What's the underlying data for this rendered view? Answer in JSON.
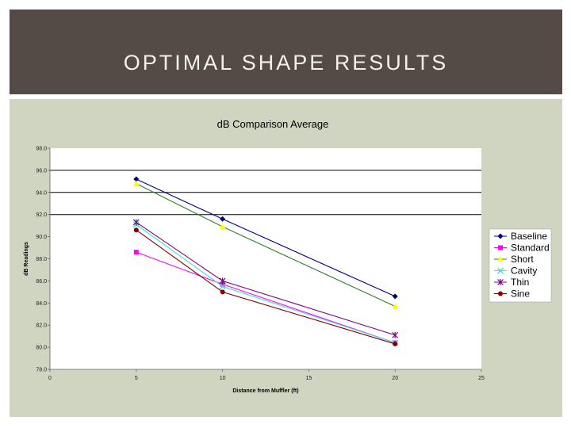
{
  "slide": {
    "title": "OPTIMAL SHAPE RESULTS"
  },
  "colors": {
    "title_band": "#544b47",
    "chart_panel": "#cfd5c0",
    "plot_area": "#ffffff"
  },
  "chart_data": {
    "type": "line",
    "title": "dB Comparison Average",
    "xlabel": "Distance from Muffler (ft)",
    "ylabel": "dB Readings",
    "xlim": [
      0,
      25
    ],
    "ylim": [
      78,
      98
    ],
    "x_ticks": [
      "0",
      "5",
      "10",
      "15",
      "20",
      "25"
    ],
    "y_ticks": [
      "78.0",
      "80.0",
      "82.0",
      "84.0",
      "86.0",
      "88.0",
      "90.0",
      "92.0",
      "94.0",
      "96.0",
      "98.0"
    ],
    "grid": "horizontal major lines at 92, 94, 96",
    "legend_position": "right",
    "x": [
      5,
      10,
      20
    ],
    "series": [
      {
        "name": "Baseline",
        "values": [
          95.2,
          91.6,
          84.6
        ],
        "color": "#000080",
        "marker": "diamond"
      },
      {
        "name": "Standard",
        "values": [
          88.6,
          85.7,
          80.4
        ],
        "color": "#ff00ff",
        "marker": "square"
      },
      {
        "name": "Short",
        "values": [
          94.8,
          90.9,
          83.7
        ],
        "color": "#ffff00",
        "marker": "triangle",
        "line_color": "#2e7d32"
      },
      {
        "name": "Cavity",
        "values": [
          91.1,
          85.5,
          80.4
        ],
        "color": "#40e0d0",
        "marker": "x"
      },
      {
        "name": "Thin",
        "values": [
          91.3,
          86.0,
          81.1
        ],
        "color": "#800080",
        "marker": "star"
      },
      {
        "name": "Sine",
        "values": [
          90.6,
          85.0,
          80.3
        ],
        "color": "#800000",
        "marker": "circle"
      }
    ]
  }
}
